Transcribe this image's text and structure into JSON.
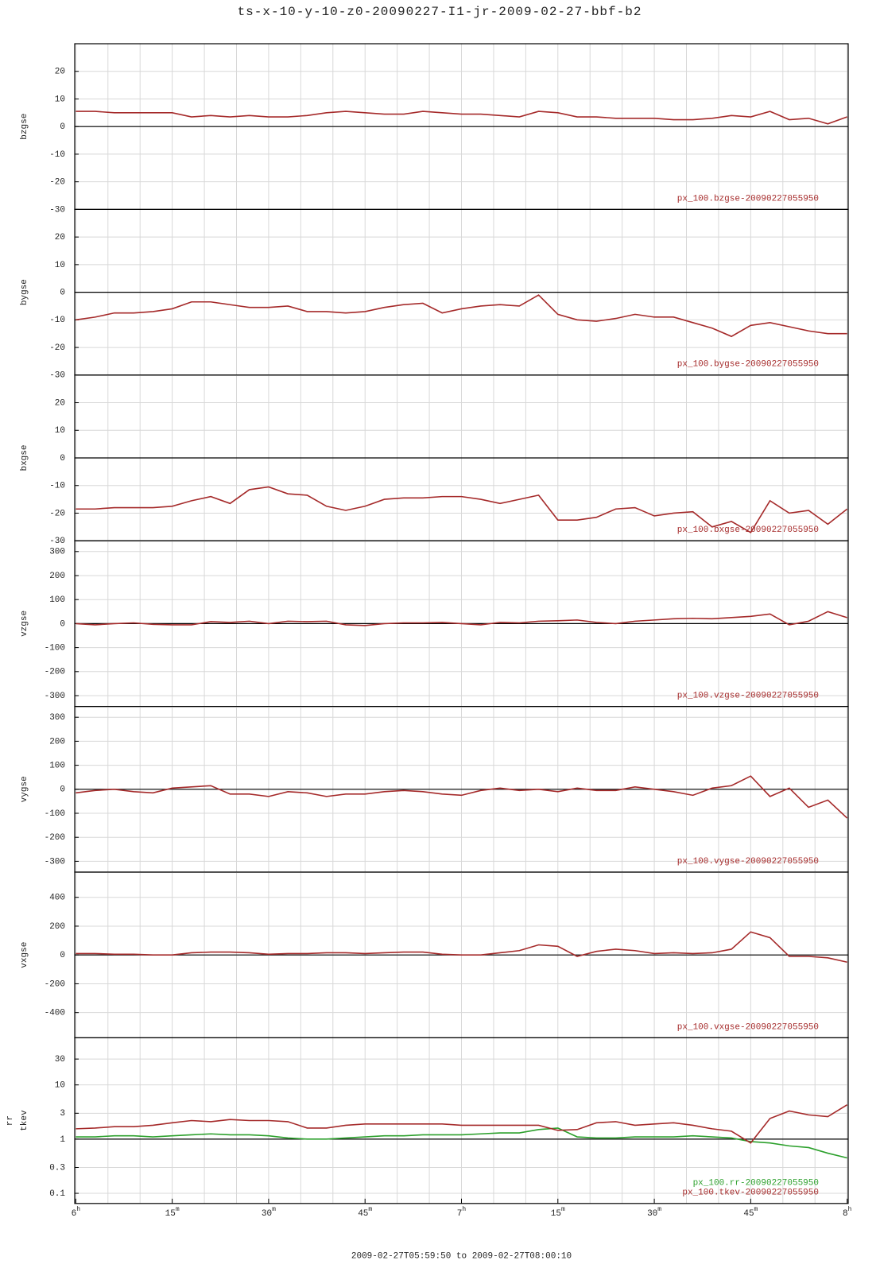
{
  "title": "ts-x-10-y-10-z0-20090227-I1-jr-2009-02-27-bbf-b2",
  "chart_data": [
    {
      "type": "line",
      "ylabel": "bzgse",
      "xlim": [
        -0.167,
        120.167
      ],
      "ylim": [
        -30,
        30
      ],
      "yticks": [
        -30,
        -20,
        -10,
        0,
        10,
        20
      ],
      "xminorticks": [
        0,
        5,
        10,
        15,
        20,
        25,
        30,
        35,
        40,
        45,
        50,
        55,
        60,
        65,
        70,
        75,
        80,
        85,
        90,
        95,
        100,
        105,
        110,
        115,
        120
      ],
      "x": [
        0,
        3,
        6,
        9,
        12,
        15,
        18,
        21,
        24,
        27,
        30,
        33,
        36,
        39,
        42,
        45,
        48,
        51,
        54,
        57,
        60,
        63,
        66,
        69,
        72,
        75,
        78,
        81,
        84,
        87,
        90,
        93,
        96,
        99,
        102,
        105,
        108,
        111,
        114,
        117,
        120
      ],
      "series": [
        {
          "name": "px_100.bzgse-20090227055950",
          "color": "#a52a2a",
          "values": [
            5.5,
            5.5,
            5,
            5,
            5,
            5,
            3.5,
            4,
            3.5,
            4,
            3.5,
            3.5,
            4,
            5,
            5.5,
            5,
            4.5,
            4.5,
            5.5,
            5,
            4.5,
            4.5,
            4,
            3.5,
            5.5,
            5,
            3.5,
            3.5,
            3,
            3,
            3,
            2.5,
            2.5,
            3,
            4,
            3.5,
            5.5,
            2.5,
            3,
            1,
            3.5
          ]
        }
      ]
    },
    {
      "type": "line",
      "ylabel": "bygse",
      "xlim": [
        -0.167,
        120.167
      ],
      "ylim": [
        -30,
        30
      ],
      "yticks": [
        -30,
        -20,
        -10,
        0,
        10,
        20
      ],
      "xminorticks": [
        0,
        5,
        10,
        15,
        20,
        25,
        30,
        35,
        40,
        45,
        50,
        55,
        60,
        65,
        70,
        75,
        80,
        85,
        90,
        95,
        100,
        105,
        110,
        115,
        120
      ],
      "x": [
        0,
        3,
        6,
        9,
        12,
        15,
        18,
        21,
        24,
        27,
        30,
        33,
        36,
        39,
        42,
        45,
        48,
        51,
        54,
        57,
        60,
        63,
        66,
        69,
        72,
        75,
        78,
        81,
        84,
        87,
        90,
        93,
        96,
        99,
        102,
        105,
        108,
        111,
        114,
        117,
        120
      ],
      "series": [
        {
          "name": "px_100.bygse-20090227055950",
          "color": "#a52a2a",
          "values": [
            -10,
            -9,
            -7.5,
            -7.5,
            -7,
            -6,
            -3.5,
            -3.5,
            -4.5,
            -5.5,
            -5.5,
            -5,
            -7,
            -7,
            -7.5,
            -7,
            -5.5,
            -4.5,
            -4,
            -7.5,
            -6,
            -5,
            -4.5,
            -5,
            -1,
            -8,
            -10,
            -10.5,
            -9.5,
            -8,
            -9,
            -9,
            -11,
            -13,
            -16,
            -12,
            -11,
            -12.5,
            -14,
            -15,
            -15
          ]
        }
      ]
    },
    {
      "type": "line",
      "ylabel": "bxgse",
      "xlim": [
        -0.167,
        120.167
      ],
      "ylim": [
        -30,
        30
      ],
      "yticks": [
        -30,
        -20,
        -10,
        0,
        10,
        20
      ],
      "xminorticks": [
        0,
        5,
        10,
        15,
        20,
        25,
        30,
        35,
        40,
        45,
        50,
        55,
        60,
        65,
        70,
        75,
        80,
        85,
        90,
        95,
        100,
        105,
        110,
        115,
        120
      ],
      "x": [
        0,
        3,
        6,
        9,
        12,
        15,
        18,
        21,
        24,
        27,
        30,
        33,
        36,
        39,
        42,
        45,
        48,
        51,
        54,
        57,
        60,
        63,
        66,
        69,
        72,
        75,
        78,
        81,
        84,
        87,
        90,
        93,
        96,
        99,
        102,
        105,
        108,
        111,
        114,
        117,
        120
      ],
      "series": [
        {
          "name": "px_100.bxgse-20090227055950",
          "color": "#a52a2a",
          "values": [
            -18.5,
            -18.5,
            -18,
            -18,
            -18,
            -17.5,
            -15.5,
            -14,
            -16.5,
            -11.5,
            -10.5,
            -13,
            -13.5,
            -17.5,
            -19,
            -17.5,
            -15,
            -14.5,
            -14.5,
            -14,
            -14,
            -15,
            -16.5,
            -15,
            -13.5,
            -22.5,
            -22.5,
            -21.5,
            -18.5,
            -18,
            -21,
            -20,
            -19.5,
            -25,
            -23,
            -27,
            -15.5,
            -20,
            -19,
            -24,
            -18.5
          ]
        }
      ]
    },
    {
      "type": "line",
      "ylabel": "vzgse",
      "xlim": [
        -0.167,
        120.167
      ],
      "ylim": [
        -345,
        345
      ],
      "yticks": [
        -300,
        -200,
        -100,
        0,
        100,
        200,
        300
      ],
      "xminorticks": [
        0,
        5,
        10,
        15,
        20,
        25,
        30,
        35,
        40,
        45,
        50,
        55,
        60,
        65,
        70,
        75,
        80,
        85,
        90,
        95,
        100,
        105,
        110,
        115,
        120
      ],
      "x": [
        0,
        3,
        6,
        9,
        12,
        15,
        18,
        21,
        24,
        27,
        30,
        33,
        36,
        39,
        42,
        45,
        48,
        51,
        54,
        57,
        60,
        63,
        66,
        69,
        72,
        75,
        78,
        81,
        84,
        87,
        90,
        93,
        96,
        99,
        102,
        105,
        108,
        111,
        114,
        117,
        120
      ],
      "series": [
        {
          "name": "px_100.vzgse-20090227055950",
          "color": "#a52a2a",
          "values": [
            0,
            -5,
            0,
            3,
            -3,
            -5,
            -5,
            8,
            5,
            10,
            0,
            10,
            8,
            10,
            -5,
            -8,
            0,
            3,
            3,
            5,
            0,
            -5,
            5,
            3,
            10,
            12,
            15,
            5,
            0,
            10,
            15,
            20,
            22,
            20,
            25,
            30,
            40,
            -5,
            10,
            50,
            25
          ]
        }
      ]
    },
    {
      "type": "line",
      "ylabel": "vygse",
      "xlim": [
        -0.167,
        120.167
      ],
      "ylim": [
        -345,
        345
      ],
      "yticks": [
        -300,
        -200,
        -100,
        0,
        100,
        200,
        300
      ],
      "xminorticks": [
        0,
        5,
        10,
        15,
        20,
        25,
        30,
        35,
        40,
        45,
        50,
        55,
        60,
        65,
        70,
        75,
        80,
        85,
        90,
        95,
        100,
        105,
        110,
        115,
        120
      ],
      "x": [
        0,
        3,
        6,
        9,
        12,
        15,
        18,
        21,
        24,
        27,
        30,
        33,
        36,
        39,
        42,
        45,
        48,
        51,
        54,
        57,
        60,
        63,
        66,
        69,
        72,
        75,
        78,
        81,
        84,
        87,
        90,
        93,
        96,
        99,
        102,
        105,
        108,
        111,
        114,
        117,
        120
      ],
      "series": [
        {
          "name": "px_100.vygse-20090227055950",
          "color": "#a52a2a",
          "values": [
            -15,
            -5,
            0,
            -10,
            -15,
            5,
            10,
            15,
            -20,
            -20,
            -30,
            -10,
            -15,
            -30,
            -20,
            -20,
            -10,
            -5,
            -10,
            -20,
            -25,
            -5,
            5,
            -5,
            0,
            -10,
            5,
            -5,
            -5,
            10,
            0,
            -10,
            -25,
            5,
            15,
            55,
            -30,
            5,
            -75,
            -45,
            -120
          ]
        }
      ]
    },
    {
      "type": "line",
      "ylabel": "vxgse",
      "xlim": [
        -0.167,
        120.167
      ],
      "ylim": [
        -575,
        575
      ],
      "yticks": [
        -400,
        -200,
        0,
        200,
        400
      ],
      "xminorticks": [
        0,
        5,
        10,
        15,
        20,
        25,
        30,
        35,
        40,
        45,
        50,
        55,
        60,
        65,
        70,
        75,
        80,
        85,
        90,
        95,
        100,
        105,
        110,
        115,
        120
      ],
      "x": [
        0,
        3,
        6,
        9,
        12,
        15,
        18,
        21,
        24,
        27,
        30,
        33,
        36,
        39,
        42,
        45,
        48,
        51,
        54,
        57,
        60,
        63,
        66,
        69,
        72,
        75,
        78,
        81,
        84,
        87,
        90,
        93,
        96,
        99,
        102,
        105,
        108,
        111,
        114,
        117,
        120
      ],
      "series": [
        {
          "name": "px_100.vxgse-20090227055950",
          "color": "#a52a2a",
          "values": [
            10,
            10,
            5,
            5,
            0,
            0,
            15,
            20,
            20,
            15,
            5,
            10,
            10,
            15,
            15,
            10,
            15,
            20,
            20,
            5,
            0,
            0,
            15,
            30,
            70,
            60,
            -10,
            25,
            40,
            30,
            10,
            15,
            10,
            15,
            40,
            160,
            120,
            -10,
            -10,
            -20,
            -50
          ]
        }
      ]
    },
    {
      "type": "line",
      "ylabel": [
        "rr",
        "tkev"
      ],
      "log": true,
      "xlim": [
        -0.167,
        120.167
      ],
      "ylim": [
        0.065,
        74
      ],
      "yticks": [
        0.1,
        0.3,
        1,
        3,
        10,
        30
      ],
      "xminorticks": [
        0,
        5,
        10,
        15,
        20,
        25,
        30,
        35,
        40,
        45,
        50,
        55,
        60,
        65,
        70,
        75,
        80,
        85,
        90,
        95,
        100,
        105,
        110,
        115,
        120
      ],
      "xticks": [
        {
          "value": 0,
          "label": "6h"
        },
        {
          "value": 15,
          "label": "15m"
        },
        {
          "value": 30,
          "label": "30m"
        },
        {
          "value": 45,
          "label": "45m"
        },
        {
          "value": 60,
          "label": "7h"
        },
        {
          "value": 75,
          "label": "15m"
        },
        {
          "value": 90,
          "label": "30m"
        },
        {
          "value": 105,
          "label": "45m"
        },
        {
          "value": 120,
          "label": "8h"
        }
      ],
      "xlabel": "2009-02-27T05:59:50 to 2009-02-27T08:00:10",
      "x": [
        0,
        3,
        6,
        9,
        12,
        15,
        18,
        21,
        24,
        27,
        30,
        33,
        36,
        39,
        42,
        45,
        48,
        51,
        54,
        57,
        60,
        63,
        66,
        69,
        72,
        75,
        78,
        81,
        84,
        87,
        90,
        93,
        96,
        99,
        102,
        105,
        108,
        111,
        114,
        117,
        120
      ],
      "series": [
        {
          "name": "px_100.rr-20090227055950",
          "color": "#2ca02c",
          "values": [
            1.1,
            1.1,
            1.15,
            1.15,
            1.1,
            1.15,
            1.2,
            1.25,
            1.2,
            1.2,
            1.15,
            1.05,
            1.0,
            1.0,
            1.05,
            1.1,
            1.15,
            1.15,
            1.2,
            1.2,
            1.2,
            1.25,
            1.3,
            1.3,
            1.5,
            1.6,
            1.1,
            1.05,
            1.05,
            1.1,
            1.1,
            1.1,
            1.15,
            1.1,
            1.05,
            0.9,
            0.85,
            0.75,
            0.7,
            0.55,
            0.45
          ]
        },
        {
          "name": "px_100.tkev-20090227055950",
          "color": "#a52a2a",
          "values": [
            1.55,
            1.6,
            1.7,
            1.7,
            1.8,
            2.0,
            2.2,
            2.1,
            2.3,
            2.2,
            2.2,
            2.1,
            1.6,
            1.6,
            1.8,
            1.9,
            1.9,
            1.9,
            1.9,
            1.9,
            1.8,
            1.8,
            1.8,
            1.8,
            1.8,
            1.45,
            1.5,
            2.0,
            2.1,
            1.8,
            1.9,
            2.0,
            1.8,
            1.55,
            1.4,
            0.85,
            2.4,
            3.3,
            2.8,
            2.6,
            4.3
          ]
        }
      ]
    }
  ]
}
